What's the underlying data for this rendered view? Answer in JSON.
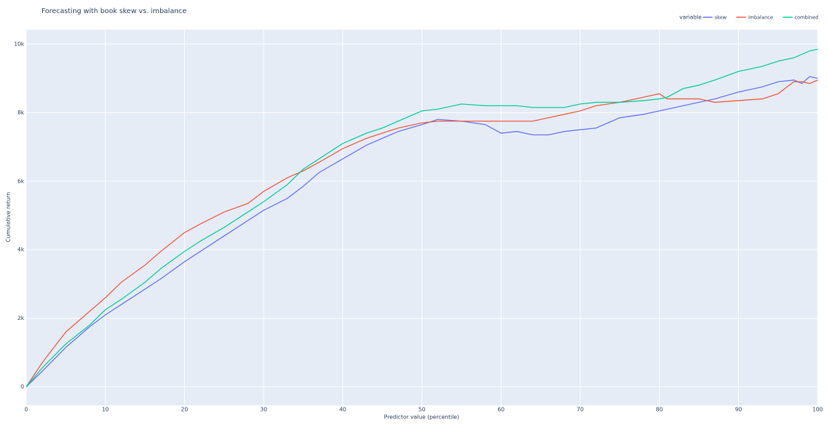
{
  "chart_data": {
    "type": "line",
    "title": "Forecasting with book skew vs. imbalance",
    "x_label": "Predictor value (percentile)",
    "y_label": "Cumulative return",
    "legend_title": "variable",
    "legend_position": "top-right",
    "grid": true,
    "xlim": [
      0,
      100
    ],
    "xticks": [
      0,
      10,
      20,
      30,
      40,
      50,
      60,
      70,
      80,
      90,
      100
    ],
    "ylim": [
      -540,
      10420
    ],
    "yticks": [
      0,
      {
        "value": 2000,
        "label": "2k"
      },
      {
        "value": 4000,
        "label": "4k"
      },
      {
        "value": 6000,
        "label": "6k"
      },
      {
        "value": 8000,
        "label": "8k"
      },
      {
        "value": 10000,
        "label": "10k"
      }
    ],
    "x": [
      0,
      2,
      5,
      8,
      10,
      12,
      15,
      17,
      20,
      22,
      25,
      28,
      30,
      33,
      35,
      37,
      40,
      43,
      45,
      47,
      50,
      52,
      55,
      58,
      60,
      62,
      64,
      66,
      68,
      70,
      72,
      75,
      78,
      80,
      81,
      83,
      85,
      87,
      90,
      93,
      95,
      97,
      98,
      99,
      100
    ],
    "series": [
      {
        "name": "skew",
        "color": "#636efa",
        "values": [
          0,
          450,
          1150,
          1750,
          2100,
          2400,
          2850,
          3150,
          3650,
          3950,
          4400,
          4850,
          5150,
          5500,
          5850,
          6250,
          6650,
          7050,
          7250,
          7450,
          7650,
          7800,
          7750,
          7650,
          7400,
          7450,
          7350,
          7350,
          7450,
          7500,
          7550,
          7850,
          7950,
          8050,
          8100,
          8200,
          8300,
          8400,
          8600,
          8750,
          8900,
          8950,
          8850,
          9050,
          9000
        ]
      },
      {
        "name": "imbalance",
        "color": "#EF553B",
        "values": [
          0,
          700,
          1600,
          2200,
          2600,
          3050,
          3550,
          3950,
          4500,
          4750,
          5100,
          5350,
          5700,
          6100,
          6300,
          6550,
          6950,
          7250,
          7400,
          7550,
          7700,
          7750,
          7750,
          7750,
          7750,
          7750,
          7750,
          7850,
          7950,
          8050,
          8200,
          8300,
          8450,
          8550,
          8400,
          8400,
          8400,
          8300,
          8350,
          8400,
          8550,
          8900,
          8900,
          8850,
          8950
        ]
      },
      {
        "name": "combined",
        "color": "#00cc96",
        "values": [
          0,
          550,
          1250,
          1800,
          2250,
          2550,
          3050,
          3450,
          3950,
          4250,
          4650,
          5100,
          5400,
          5900,
          6350,
          6650,
          7100,
          7400,
          7550,
          7750,
          8050,
          8100,
          8250,
          8200,
          8200,
          8200,
          8150,
          8150,
          8150,
          8250,
          8300,
          8300,
          8350,
          8400,
          8450,
          8700,
          8800,
          8950,
          9200,
          9350,
          9500,
          9600,
          9700,
          9800,
          9850
        ]
      }
    ]
  }
}
